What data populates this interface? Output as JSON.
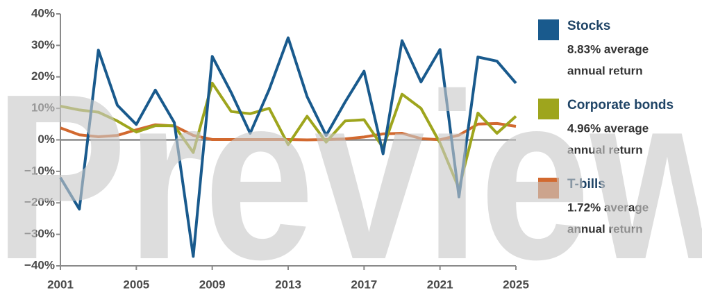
{
  "chart_data": {
    "type": "line",
    "watermark": "Preview",
    "x": [
      2001,
      2002,
      2003,
      2004,
      2005,
      2006,
      2007,
      2008,
      2009,
      2010,
      2011,
      2012,
      2013,
      2014,
      2015,
      2016,
      2017,
      2018,
      2019,
      2020,
      2021,
      2022,
      2023,
      2024,
      2025
    ],
    "xlim": [
      2001,
      2025
    ],
    "xticks": [
      2001,
      2005,
      2009,
      2013,
      2017,
      2021,
      2025
    ],
    "ylim": [
      -40,
      40
    ],
    "yticks": [
      {
        "value": -40,
        "label": "−40%"
      },
      {
        "value": -30,
        "label": "−30%"
      },
      {
        "value": -20,
        "label": "−20%"
      },
      {
        "value": -10,
        "label": "−10%"
      },
      {
        "value": 0,
        "label": "0%"
      },
      {
        "value": 10,
        "label": "10%"
      },
      {
        "value": 20,
        "label": "20%"
      },
      {
        "value": 30,
        "label": "30%"
      },
      {
        "value": 40,
        "label": "40%"
      }
    ],
    "series": [
      {
        "name": "Stocks",
        "color": "#195a8d",
        "note": [
          "8.83% average",
          "annual return"
        ],
        "values": [
          -12,
          -22,
          28.5,
          11,
          4.9,
          15.8,
          5.5,
          -37,
          26.5,
          15,
          2.1,
          16,
          32.4,
          13.7,
          1.4,
          12,
          21.8,
          -4.4,
          31.5,
          18.4,
          28.7,
          -18.1,
          26.3,
          25,
          18
        ]
      },
      {
        "name": "Corporate bonds",
        "color": "#9ea51d",
        "note": [
          "4.96% average",
          "annual return"
        ],
        "values": [
          10.7,
          9.5,
          8.8,
          6,
          2.5,
          4.5,
          4.5,
          -4,
          18,
          9,
          8.3,
          10,
          -1.5,
          7.5,
          -0.7,
          6,
          6.4,
          -2.5,
          14.5,
          10,
          -1,
          -15.5,
          8.5,
          2.1,
          7.5
        ]
      },
      {
        "name": "T-bills",
        "color": "#d2692f",
        "note": [
          "1.72% average",
          "annual return"
        ],
        "values": [
          3.8,
          1.6,
          1.0,
          1.4,
          3.2,
          4.8,
          4.4,
          1.4,
          0.1,
          0.1,
          0.1,
          0.1,
          0.1,
          0.0,
          0.1,
          0.3,
          0.9,
          1.9,
          2.1,
          0.4,
          0.05,
          1.5,
          5.0,
          5.2,
          4.3
        ]
      }
    ]
  }
}
